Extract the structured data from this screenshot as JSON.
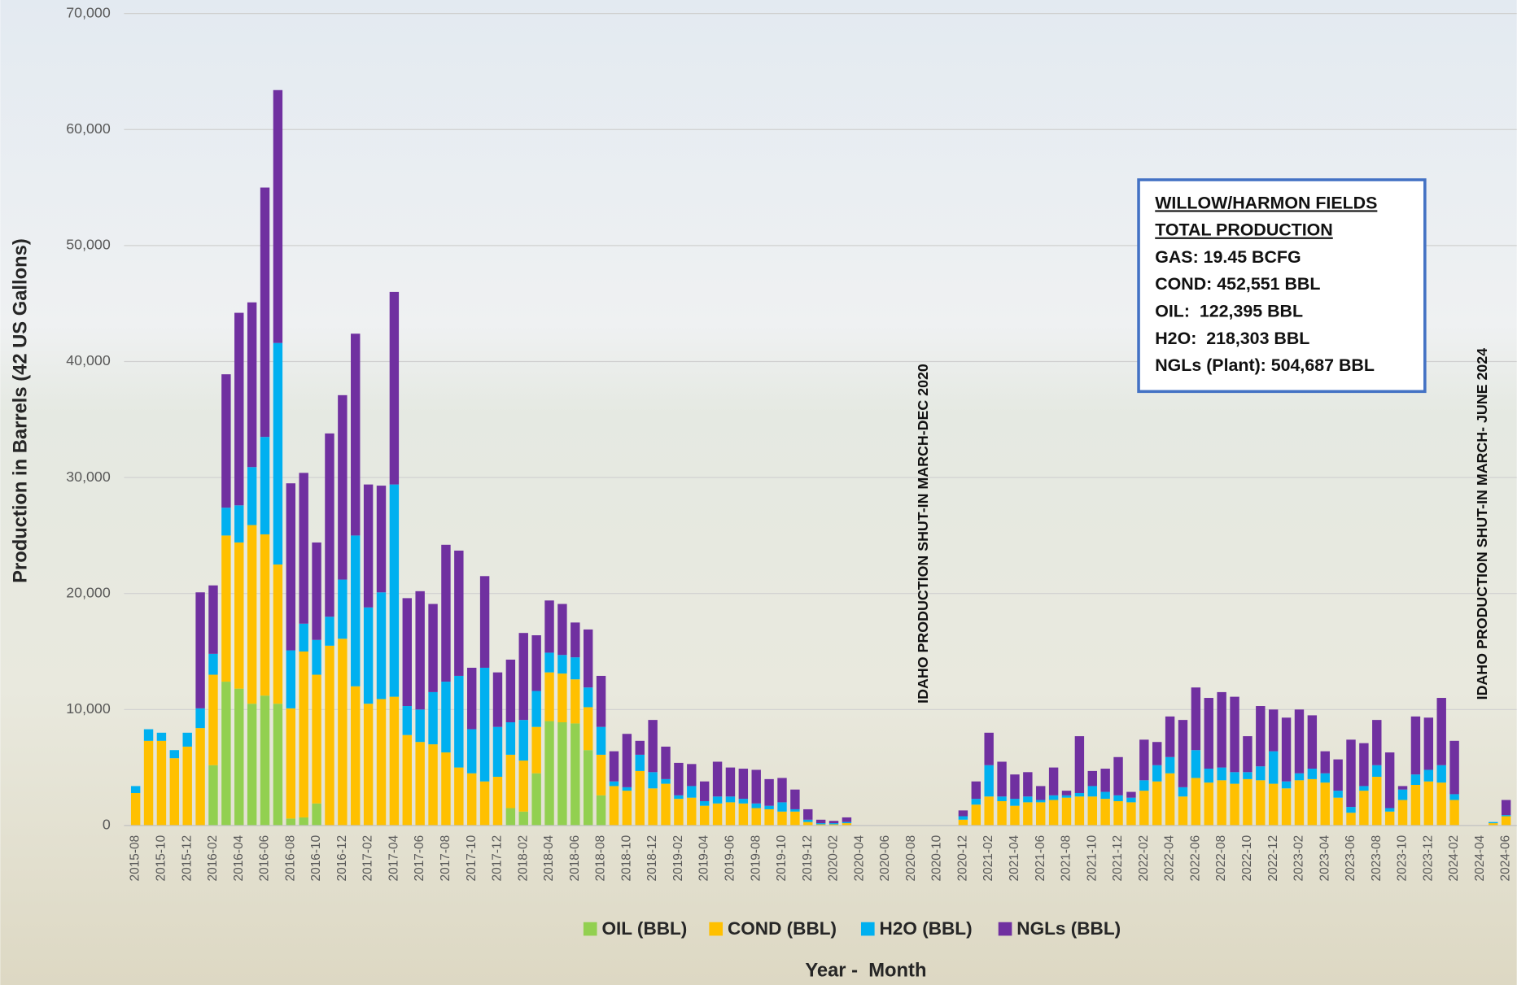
{
  "chart_data": {
    "type": "stacked_bar",
    "y_label": "Production in Barrels (42 US Gallons)",
    "x_label": "Year -  Month",
    "ylim": [
      0,
      70000
    ],
    "yticks": [
      0,
      {
        "value": 10000,
        "label": "10,000"
      },
      {
        "value": 20000,
        "label": "20,000"
      },
      {
        "value": 30000,
        "label": "30,000"
      },
      {
        "value": 40000,
        "label": "40,000"
      },
      {
        "value": 50000,
        "label": "50,000"
      },
      {
        "value": 60000,
        "label": "60,000"
      },
      {
        "value": 70000,
        "label": "70,000"
      }
    ],
    "grid": true,
    "legend": "bottom",
    "categories": [
      "2015-08",
      null,
      "2015-10",
      null,
      "2015-12",
      null,
      "2016-02",
      null,
      "2016-04",
      null,
      "2016-06",
      null,
      "2016-08",
      null,
      "2016-10",
      null,
      "2016-12",
      null,
      "2017-02",
      null,
      "2017-04",
      null,
      "2017-06",
      null,
      "2017-08",
      null,
      "2017-10",
      null,
      "2017-12",
      null,
      "2018-02",
      null,
      "2018-04",
      null,
      "2018-06",
      null,
      "2018-08",
      null,
      "2018-10",
      null,
      "2018-12",
      null,
      "2019-02",
      null,
      "2019-04",
      null,
      "2019-06",
      null,
      "2019-08",
      null,
      "2019-10",
      null,
      "2019-12",
      null,
      "2020-02",
      null,
      "2020-04",
      null,
      "2020-06",
      null,
      "2020-08",
      null,
      "2020-10",
      null,
      "2020-12",
      null,
      "2021-02",
      null,
      "2021-04",
      null,
      "2021-06",
      null,
      "2021-08",
      null,
      "2021-10",
      null,
      "2021-12",
      null,
      "2022-02",
      null,
      "2022-04",
      null,
      "2022-06",
      null,
      "2022-08",
      null,
      "2022-10",
      null,
      "2022-12",
      null,
      "2023-02",
      null,
      "2023-04",
      null,
      "2023-06",
      null,
      "2023-08",
      null,
      "2023-10",
      null,
      "2023-12",
      null,
      "2024-02",
      null,
      "2024-04",
      null,
      "2024-06"
    ],
    "series": [
      {
        "name": "OIL (BBL)",
        "color": "#92d050",
        "values": [
          0,
          0,
          0,
          0,
          0,
          0,
          5200,
          12400,
          11800,
          10500,
          11200,
          10500,
          600,
          700,
          1900,
          0,
          0,
          0,
          0,
          0,
          0,
          0,
          0,
          0,
          0,
          0,
          0,
          0,
          0,
          1500,
          1200,
          4500,
          9000,
          8900,
          8800,
          6500,
          2600,
          0,
          0,
          0,
          0,
          0,
          0,
          0,
          0,
          0,
          0,
          0,
          0,
          0,
          0,
          0,
          0,
          0,
          0,
          0,
          0,
          0,
          0,
          0,
          0,
          0,
          0,
          0,
          0,
          0,
          0,
          0,
          0,
          0,
          0,
          0,
          0,
          0,
          0,
          0,
          0,
          0,
          0,
          0,
          0,
          0,
          0,
          0,
          0,
          0,
          0,
          0,
          0,
          0,
          0,
          0,
          0,
          0,
          0,
          0,
          0,
          0,
          0,
          0,
          0,
          0,
          0,
          0,
          0,
          0,
          0
        ]
      },
      {
        "name": "COND (BBL)",
        "color": "#ffc000",
        "values": [
          2800,
          7300,
          7300,
          5800,
          6800,
          8400,
          7800,
          12600,
          12600,
          15400,
          13900,
          12000,
          9500,
          14300,
          11100,
          15500,
          16100,
          12000,
          10500,
          10900,
          11100,
          7800,
          7200,
          7000,
          6300,
          5000,
          4500,
          3800,
          4200,
          4600,
          4400,
          4000,
          4200,
          4200,
          3800,
          3700,
          3500,
          3400,
          3000,
          4700,
          3200,
          3600,
          2300,
          2400,
          1700,
          1900,
          2000,
          1900,
          1500,
          1400,
          1200,
          1200,
          300,
          100,
          100,
          200,
          0,
          0,
          0,
          0,
          0,
          0,
          0,
          0,
          500,
          1800,
          2500,
          2100,
          1700,
          2000,
          2000,
          2200,
          2400,
          2500,
          2500,
          2300,
          2100,
          2000,
          3000,
          3800,
          4500,
          2500,
          4100,
          3700,
          3900,
          3600,
          4000,
          3900,
          3600,
          3200,
          3900,
          4000,
          3700,
          2400,
          1100,
          3000,
          4200,
          1200,
          2200,
          3500,
          3800,
          3700,
          2200,
          0,
          0,
          200,
          800
        ]
      },
      {
        "name": "H2O (BBL)",
        "color": "#00b0f0",
        "values": [
          600,
          1000,
          700,
          700,
          1200,
          1700,
          1800,
          2400,
          3200,
          5000,
          8400,
          19100,
          5000,
          2400,
          3000,
          2500,
          5100,
          13000,
          8300,
          9200,
          18300,
          2500,
          2800,
          4500,
          6100,
          7900,
          3800,
          9800,
          4300,
          2800,
          3500,
          3100,
          1700,
          1600,
          1900,
          1700,
          2400,
          400,
          300,
          1400,
          1400,
          400,
          300,
          1000,
          400,
          600,
          500,
          400,
          400,
          300,
          800,
          200,
          200,
          100,
          100,
          100,
          0,
          0,
          0,
          0,
          0,
          0,
          0,
          0,
          300,
          500,
          2700,
          400,
          600,
          500,
          200,
          400,
          200,
          300,
          900,
          600,
          500,
          400,
          900,
          1400,
          1400,
          800,
          2400,
          1200,
          1100,
          1000,
          600,
          1200,
          2800,
          600,
          600,
          900,
          800,
          600,
          500,
          400,
          1000,
          300,
          900,
          900,
          1000,
          1500,
          500,
          0,
          0,
          100,
          100
        ]
      },
      {
        "name": "NGLs (BBL)",
        "color": "#7030a0",
        "values": [
          0,
          0,
          0,
          0,
          0,
          10000,
          5900,
          11500,
          16600,
          14200,
          21500,
          21800,
          14400,
          13000,
          8400,
          15800,
          15900,
          17400,
          10600,
          9200,
          16600,
          9300,
          10200,
          7600,
          11800,
          10800,
          5300,
          7900,
          4700,
          5400,
          7500,
          4800,
          4500,
          4400,
          3000,
          5000,
          4400,
          2600,
          4600,
          1200,
          4500,
          2800,
          2800,
          1900,
          1700,
          3000,
          2500,
          2600,
          2900,
          2300,
          2100,
          1700,
          900,
          300,
          200,
          400,
          0,
          0,
          0,
          0,
          0,
          0,
          0,
          0,
          500,
          1500,
          2800,
          3000,
          2100,
          2100,
          1200,
          2400,
          400,
          4900,
          1300,
          2000,
          3300,
          500,
          3500,
          2000,
          3500,
          5800,
          5400,
          6100,
          6500,
          6500,
          3100,
          5200,
          3600,
          5500,
          5500,
          4600,
          1900,
          2700,
          5800,
          3700,
          3900,
          4800,
          300,
          5000,
          4500,
          5800,
          4600,
          0,
          0,
          0,
          1300
        ]
      }
    ],
    "annotations": [
      "IDAHO PRODUCTION SHUT-IN MARCH-DEC 2020",
      "IDAHO PRODUCTION SHUT-IN MARCH- JUNE 2024"
    ],
    "info_box": {
      "title": [
        "WILLOW/HARMON FIELDS",
        "TOTAL PRODUCTION"
      ],
      "lines": [
        "GAS: 19.45 BCFG",
        "COND: 452,551 BBL",
        "OIL:  122,395 BBL",
        "H2O:  218,303 BBL",
        "NGLs (Plant): 504,687 BBL"
      ]
    }
  }
}
